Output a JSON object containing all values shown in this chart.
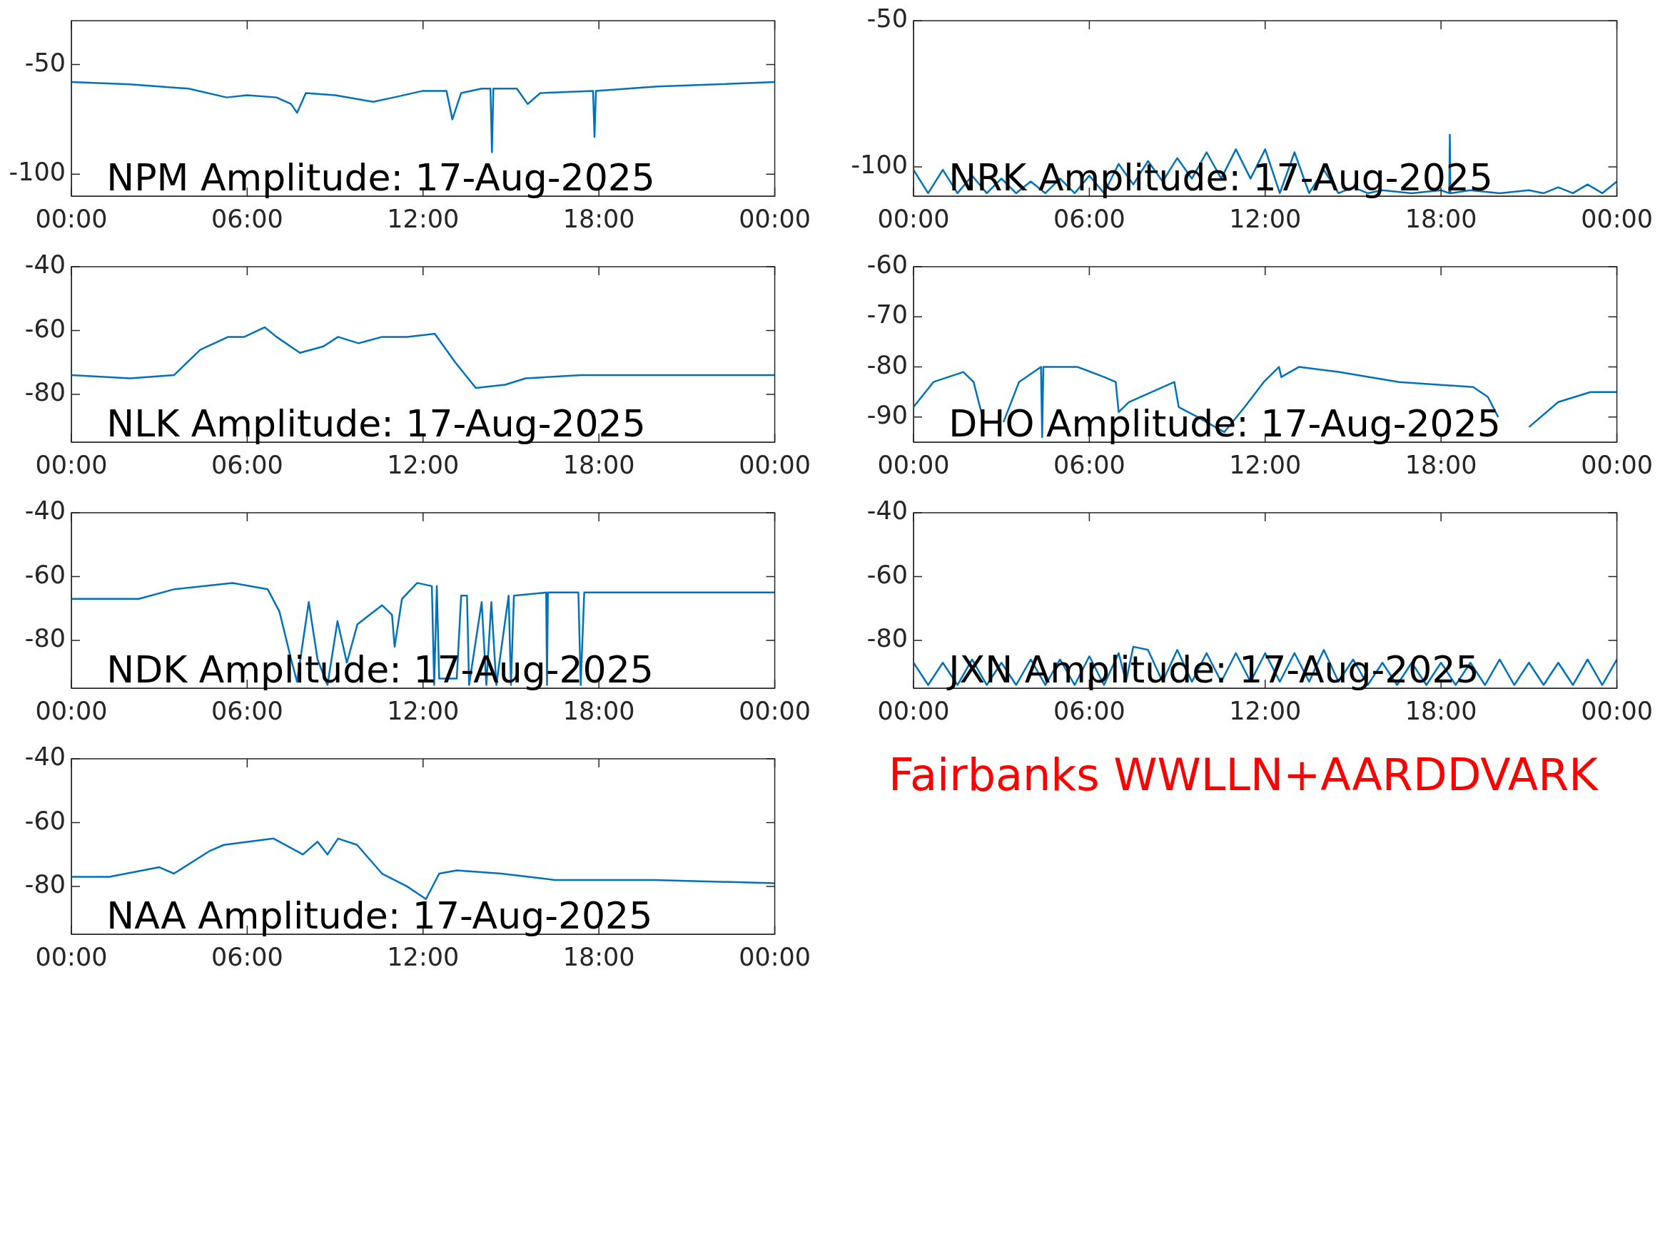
{
  "chart_data": [
    {
      "type": "line",
      "title": "NPM Amplitude: 17-Aug-2025",
      "xlim": [
        0,
        24
      ],
      "xticks": [
        {
          "value": 0,
          "label": "00:00"
        },
        {
          "value": 6,
          "label": "06:00"
        },
        {
          "value": 12,
          "label": "12:00"
        },
        {
          "value": 18,
          "label": "18:00"
        },
        {
          "value": 24,
          "label": "00:00"
        }
      ],
      "ylim": [
        -110,
        -30
      ],
      "yticks": [
        -100,
        -50
      ],
      "series": [
        {
          "color": "#0072bd",
          "x": [
            0,
            2,
            4,
            5.3,
            6,
            7,
            7.5,
            7.7,
            8,
            9,
            10.3,
            11,
            12,
            12.8,
            13,
            13.3,
            14,
            14.3,
            14.35,
            14.4,
            15.2,
            15.57,
            16,
            17.8,
            17.85,
            17.9,
            20,
            24
          ],
          "values": [
            -58,
            -59,
            -61,
            -65,
            -64,
            -65,
            -68,
            -72,
            -63,
            -64,
            -67,
            -65,
            -62,
            -62,
            -75,
            -63,
            -61,
            -61,
            -90,
            -61,
            -61,
            -68,
            -63,
            -62,
            -83,
            -62,
            -60,
            -58
          ]
        }
      ]
    },
    {
      "type": "line",
      "title": "NRK Amplitude: 17-Aug-2025",
      "xlim": [
        0,
        24
      ],
      "xticks": [
        {
          "value": 0,
          "label": "00:00"
        },
        {
          "value": 6,
          "label": "06:00"
        },
        {
          "value": 12,
          "label": "12:00"
        },
        {
          "value": 18,
          "label": "18:00"
        },
        {
          "value": 24,
          "label": "00:00"
        }
      ],
      "ylim": [
        -110,
        -50
      ],
      "yticks": [
        -100,
        -50
      ],
      "series": [
        {
          "color": "#0072bd",
          "x": [
            0,
            0.5,
            1,
            1.5,
            2,
            2.5,
            3,
            3.5,
            4,
            4.5,
            5,
            5.5,
            6,
            6.5,
            7,
            7.5,
            8,
            8.5,
            9,
            9.5,
            10,
            10.5,
            11,
            11.5,
            12,
            12.5,
            13,
            13.5,
            14,
            14.5,
            15,
            15.5,
            16,
            17,
            18,
            18.28,
            18.3,
            18.32,
            19,
            20,
            21,
            21.5,
            22,
            22.5,
            23,
            23.5,
            24
          ],
          "values": [
            -101,
            -109,
            -101,
            -109,
            -103,
            -109,
            -104,
            -109,
            -105,
            -109,
            -104,
            -109,
            -103,
            -109,
            -99,
            -106,
            -98,
            -105,
            -97,
            -104,
            -95,
            -104,
            -94,
            -104,
            -94,
            -109,
            -95,
            -109,
            -101,
            -109,
            -107,
            -109,
            -108,
            -109,
            -108,
            -109,
            -89,
            -109,
            -108,
            -109,
            -108,
            -109,
            -107,
            -109,
            -106,
            -109,
            -105
          ]
        }
      ]
    },
    {
      "type": "line",
      "title": "NLK Amplitude: 17-Aug-2025",
      "xlim": [
        0,
        24
      ],
      "xticks": [
        {
          "value": 0,
          "label": "00:00"
        },
        {
          "value": 6,
          "label": "06:00"
        },
        {
          "value": 12,
          "label": "12:00"
        },
        {
          "value": 18,
          "label": "18:00"
        },
        {
          "value": 24,
          "label": "00:00"
        }
      ],
      "ylim": [
        -95,
        -40
      ],
      "yticks": [
        -80,
        -60,
        -40
      ],
      "series": [
        {
          "color": "#0072bd",
          "x": [
            0,
            2,
            3.5,
            4.4,
            5.35,
            5.9,
            6.6,
            7,
            7.8,
            8.6,
            9.1,
            9.8,
            10.6,
            11.45,
            12.4,
            13.1,
            13.8,
            14.8,
            15.5,
            17.4,
            19.9,
            24
          ],
          "values": [
            -74,
            -75,
            -74,
            -66,
            -62,
            -62,
            -59,
            -62,
            -67,
            -65,
            -62,
            -64,
            -62,
            -62,
            -61,
            -70,
            -78,
            -77,
            -75,
            -74,
            -74,
            -74
          ]
        }
      ]
    },
    {
      "type": "line",
      "title": "DHO Amplitude: 17-Aug-2025",
      "xlim": [
        0,
        24
      ],
      "xticks": [
        {
          "value": 0,
          "label": "00:00"
        },
        {
          "value": 6,
          "label": "06:00"
        },
        {
          "value": 12,
          "label": "12:00"
        },
        {
          "value": 18,
          "label": "18:00"
        },
        {
          "value": 24,
          "label": "00:00"
        }
      ],
      "ylim": [
        -95,
        -60
      ],
      "yticks": [
        -90,
        -80,
        -70,
        -60
      ],
      "series": [
        {
          "color": "#0072bd",
          "x": [
            0,
            0.68,
            1.7,
            2.05,
            2.4,
            2.65,
            2.9,
            3.07,
            3.6,
            4.35,
            4.39,
            4.43,
            5.6,
            6.5,
            6.9,
            7,
            7.35,
            8.9,
            9.05,
            9.7,
            10.6,
            11.3,
            11.95,
            12.47,
            12.55,
            13.15,
            14.5,
            16.57,
            19.1,
            19.6,
            19.95,
            20.2,
            20.65,
            21,
            22,
            23.1,
            24
          ],
          "values": [
            -88,
            -83,
            -81,
            -83,
            -91,
            null,
            null,
            -91,
            -83,
            -80,
            -94,
            -80,
            -80,
            -82,
            -83,
            -89,
            -87,
            -83,
            -88,
            -90,
            -93,
            -88,
            -83,
            -80,
            -82,
            -80,
            -81,
            -83,
            -84,
            -86,
            -90,
            null,
            null,
            -92,
            -87,
            -85,
            -85
          ]
        }
      ]
    },
    {
      "type": "line",
      "title": "NDK Amplitude: 17-Aug-2025",
      "xlim": [
        0,
        24
      ],
      "xticks": [
        {
          "value": 0,
          "label": "00:00"
        },
        {
          "value": 6,
          "label": "06:00"
        },
        {
          "value": 12,
          "label": "12:00"
        },
        {
          "value": 18,
          "label": "18:00"
        },
        {
          "value": 24,
          "label": "00:00"
        }
      ],
      "ylim": [
        -95,
        -40
      ],
      "yticks": [
        -80,
        -60,
        -40
      ],
      "series": [
        {
          "color": "#0072bd",
          "x": [
            0,
            2.3,
            3.5,
            5.5,
            6.7,
            7.1,
            7.5,
            7.7,
            8.1,
            8.4,
            8.74,
            9.08,
            9.4,
            9.76,
            10.6,
            10.94,
            11.03,
            11.28,
            11.8,
            12.3,
            12.38,
            12.47,
            12.55,
            13.15,
            13.3,
            13.5,
            13.57,
            14,
            14.16,
            14.33,
            14.5,
            14.92,
            15,
            15.1,
            16.2,
            16.23,
            16.26,
            17.3,
            17.38,
            17.5,
            19.9,
            24
          ],
          "values": [
            -67,
            -67,
            -64,
            -62,
            -64,
            -71,
            -86,
            -93,
            -68,
            -86,
            -94,
            -74,
            -87,
            -75,
            -69,
            -72,
            -82,
            -67,
            -62,
            -63,
            -94,
            -63,
            -92,
            -92,
            -66,
            -66,
            -94,
            -68,
            -94,
            -68,
            -94,
            -66,
            -94,
            -66,
            -65,
            -94,
            -65,
            -65,
            -94,
            -65,
            -65,
            -65
          ]
        }
      ]
    },
    {
      "type": "line",
      "title": "JXN Amplitude: 17-Aug-2025",
      "xlim": [
        0,
        24
      ],
      "xticks": [
        {
          "value": 0,
          "label": "00:00"
        },
        {
          "value": 6,
          "label": "06:00"
        },
        {
          "value": 12,
          "label": "12:00"
        },
        {
          "value": 18,
          "label": "18:00"
        },
        {
          "value": 24,
          "label": "00:00"
        }
      ],
      "ylim": [
        -95,
        -40
      ],
      "yticks": [
        -80,
        -60,
        -40
      ],
      "series": [
        {
          "color": "#0072bd",
          "x": [
            0,
            0.5,
            1,
            1.5,
            2,
            2.5,
            3,
            3.5,
            4,
            4.5,
            5,
            5.5,
            6,
            6.5,
            7,
            7.25,
            7.5,
            8,
            8.5,
            9,
            9.5,
            10,
            10.5,
            11,
            11.5,
            12,
            12.5,
            13,
            13.5,
            14,
            14.5,
            15,
            15.5,
            16,
            16.5,
            17,
            17.5,
            18,
            18.5,
            19,
            19.5,
            20,
            20.5,
            21,
            21.5,
            22,
            22.5,
            23,
            23.5,
            24
          ],
          "values": [
            -87,
            -94,
            -87,
            -94,
            -86,
            -94,
            -87,
            -94,
            -86,
            -94,
            -86,
            -94,
            -85,
            -94,
            -84,
            -93,
            -82,
            -83,
            -93,
            -83,
            -93,
            -84,
            -93,
            -84,
            -93,
            -84,
            -93,
            -84,
            -93,
            -83,
            -93,
            -86,
            -94,
            -87,
            -94,
            -87,
            -94,
            -87,
            -94,
            -87,
            -94,
            -86,
            -94,
            -87,
            -94,
            -87,
            -94,
            -86,
            -94,
            -86
          ]
        }
      ]
    },
    {
      "type": "line",
      "title": "NAA Amplitude: 17-Aug-2025",
      "xlim": [
        0,
        24
      ],
      "xticks": [
        {
          "value": 0,
          "label": "00:00"
        },
        {
          "value": 6,
          "label": "06:00"
        },
        {
          "value": 12,
          "label": "12:00"
        },
        {
          "value": 18,
          "label": "18:00"
        },
        {
          "value": 24,
          "label": "00:00"
        }
      ],
      "ylim": [
        -95,
        -40
      ],
      "yticks": [
        -80,
        -60,
        -40
      ],
      "series": [
        {
          "color": "#0072bd",
          "x": [
            0,
            1.3,
            3,
            3.5,
            4.7,
            5.2,
            6.9,
            7.9,
            8.4,
            8.74,
            9.1,
            9.75,
            10.6,
            11.45,
            12.1,
            12.55,
            13.15,
            14.67,
            16.5,
            19.9,
            24
          ],
          "values": [
            -77,
            -77,
            -74,
            -76,
            -69,
            -67,
            -65,
            -70,
            -66,
            -70,
            -65,
            -67,
            -76,
            -80,
            -84,
            -76,
            -75,
            -76,
            -78,
            -78,
            -79
          ]
        }
      ]
    },
    {
      "type": "other",
      "color": "#ff0000",
      "annotations": [
        "Fairbanks WWLLN+AARDDVARK"
      ]
    }
  ]
}
